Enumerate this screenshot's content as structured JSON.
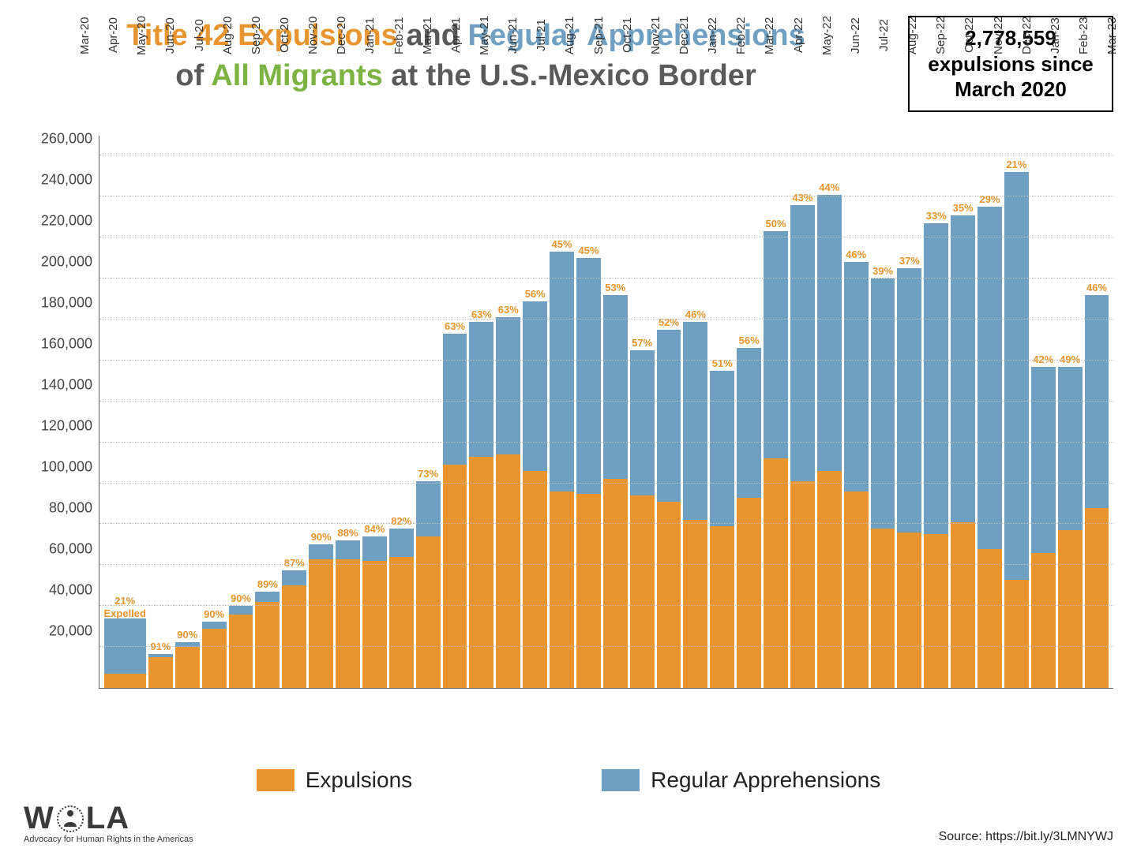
{
  "title": {
    "part1": "Title 42 Expulsions",
    "part2": " and ",
    "part3": "Regular Apprehensions",
    "line2_pre": "of ",
    "part4": "All Migrants",
    "line2_post": " at the U.S.-Mexico Border"
  },
  "stat_box": {
    "number": "2,778,559",
    "line2": "expulsions since",
    "line3": "March 2020"
  },
  "chart": {
    "type": "stacked-bar",
    "y_max": 270000,
    "y_ticks": [
      20000,
      40000,
      60000,
      80000,
      100000,
      120000,
      140000,
      160000,
      180000,
      200000,
      220000,
      240000,
      260000
    ],
    "y_tick_labels": [
      "20,000",
      "40,000",
      "60,000",
      "80,000",
      "100,000",
      "120,000",
      "140,000",
      "160,000",
      "180,000",
      "200,000",
      "220,000",
      "240,000",
      "260,000"
    ],
    "colors": {
      "expulsions": "#e8952f",
      "apprehensions": "#6fa0c2",
      "grid": "#c0c0c0",
      "background": "#ffffff"
    },
    "series": [
      {
        "label": "Mar-20",
        "exp": 7000,
        "app": 27000,
        "pct": "21%",
        "expelled_note": true
      },
      {
        "label": "Apr-20",
        "exp": 15000,
        "app": 1500,
        "pct": "91%"
      },
      {
        "label": "May-20",
        "exp": 20000,
        "app": 2200,
        "pct": "90%"
      },
      {
        "label": "Jun-20",
        "exp": 29000,
        "app": 3200,
        "pct": "90%"
      },
      {
        "label": "Jul-20",
        "exp": 36000,
        "app": 4000,
        "pct": "90%"
      },
      {
        "label": "Aug-20",
        "exp": 42000,
        "app": 5000,
        "pct": "89%"
      },
      {
        "label": "Sep-20",
        "exp": 50000,
        "app": 7500,
        "pct": "87%"
      },
      {
        "label": "Oct-20",
        "exp": 63000,
        "app": 7000,
        "pct": "90%"
      },
      {
        "label": "Nov-20",
        "exp": 63000,
        "app": 9000,
        "pct": "88%"
      },
      {
        "label": "Dec-20",
        "exp": 62000,
        "app": 12000,
        "pct": "84%"
      },
      {
        "label": "Jan-21",
        "exp": 64000,
        "app": 14000,
        "pct": "82%"
      },
      {
        "label": "Feb-21",
        "exp": 74000,
        "app": 27000,
        "pct": "73%"
      },
      {
        "label": "Mar-21",
        "exp": 109000,
        "app": 64000,
        "pct": "63%"
      },
      {
        "label": "Apr-21",
        "exp": 113000,
        "app": 66000,
        "pct": "63%"
      },
      {
        "label": "May-21",
        "exp": 114000,
        "app": 67000,
        "pct": "63%"
      },
      {
        "label": "Jun-21",
        "exp": 106000,
        "app": 83000,
        "pct": "56%"
      },
      {
        "label": "Jul-21",
        "exp": 96000,
        "app": 117000,
        "pct": "45%"
      },
      {
        "label": "Aug-21",
        "exp": 95000,
        "app": 115000,
        "pct": "45%"
      },
      {
        "label": "Sep-21",
        "exp": 102000,
        "app": 90000,
        "pct": "53%"
      },
      {
        "label": "Oct-21",
        "exp": 94000,
        "app": 71000,
        "pct": "57%"
      },
      {
        "label": "Nov-21",
        "exp": 91000,
        "app": 84000,
        "pct": "52%"
      },
      {
        "label": "Dec-21",
        "exp": 82000,
        "app": 97000,
        "pct": "46%"
      },
      {
        "label": "Jan-22",
        "exp": 79000,
        "app": 76000,
        "pct": "51%"
      },
      {
        "label": "Feb-22",
        "exp": 93000,
        "app": 73000,
        "pct": "56%"
      },
      {
        "label": "Mar-22",
        "exp": 112000,
        "app": 111000,
        "pct": "50%"
      },
      {
        "label": "Apr-22",
        "exp": 101000,
        "app": 135000,
        "pct": "43%"
      },
      {
        "label": "May-22",
        "exp": 106000,
        "app": 135000,
        "pct": "44%"
      },
      {
        "label": "Jun-22",
        "exp": 96000,
        "app": 112000,
        "pct": "46%"
      },
      {
        "label": "Jul-22",
        "exp": 78000,
        "app": 122000,
        "pct": "39%"
      },
      {
        "label": "Aug-22",
        "exp": 76000,
        "app": 129000,
        "pct": "37%"
      },
      {
        "label": "Sep-22",
        "exp": 75000,
        "app": 152000,
        "pct": "33%"
      },
      {
        "label": "Oct-22",
        "exp": 81000,
        "app": 150000,
        "pct": "35%"
      },
      {
        "label": "Nov-22",
        "exp": 68000,
        "app": 167000,
        "pct": "29%"
      },
      {
        "label": "Dec-22",
        "exp": 53000,
        "app": 199000,
        "pct": "21%"
      },
      {
        "label": "Jan-23",
        "exp": 66000,
        "app": 91000,
        "pct": "42%"
      },
      {
        "label": "Feb-23",
        "exp": 77000,
        "app": 80000,
        "pct": "49%"
      },
      {
        "label": "Mar-23",
        "exp": 88000,
        "app": 104000,
        "pct": "46%"
      }
    ]
  },
  "legend": {
    "expulsions": "Expulsions",
    "apprehensions": "Regular Apprehensions"
  },
  "logo": {
    "text": "WOLA",
    "sub": "Advocacy for Human Rights in the Americas"
  },
  "source": "Source: https://bit.ly/3LMNYWJ"
}
